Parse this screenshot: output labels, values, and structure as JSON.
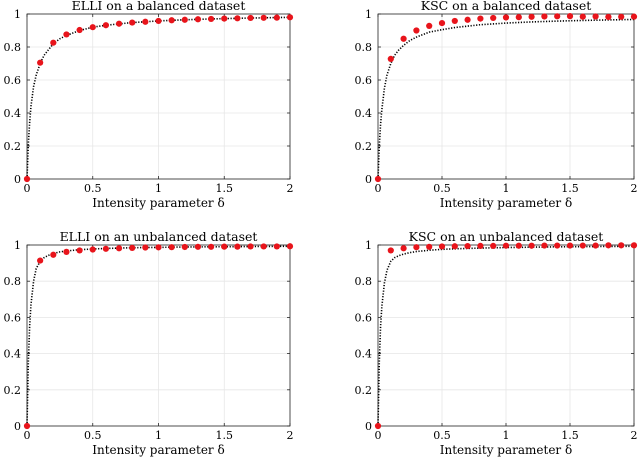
{
  "chart_data": [
    {
      "type": "scatter",
      "title": "ELLI on a balanced dataset",
      "xlabel": "Intensity parameter δ",
      "ylabel": "",
      "xlim": [
        0,
        2
      ],
      "ylim": [
        0,
        1
      ],
      "xticks": [
        "0",
        "0.5",
        "1",
        "1.5",
        "2"
      ],
      "yticks": [
        "0",
        "0.2",
        "0.4",
        "0.6",
        "0.8",
        "1"
      ],
      "grid": true,
      "series": [
        {
          "kind": "points",
          "color": "#e8141b",
          "x": [
            0,
            0.1,
            0.2,
            0.3,
            0.4,
            0.5,
            0.6,
            0.7,
            0.8,
            0.9,
            1.0,
            1.1,
            1.2,
            1.3,
            1.4,
            1.5,
            1.6,
            1.7,
            1.8,
            1.9,
            2.0
          ],
          "y": [
            0,
            0.705,
            0.826,
            0.876,
            0.903,
            0.92,
            0.932,
            0.941,
            0.948,
            0.953,
            0.958,
            0.962,
            0.965,
            0.968,
            0.97,
            0.972,
            0.974,
            0.976,
            0.977,
            0.978,
            0.98
          ]
        },
        {
          "kind": "curve",
          "style": "dotted",
          "color": "#000000",
          "x": [
            0,
            0.01,
            0.02,
            0.03,
            0.05,
            0.07,
            0.1,
            0.13,
            0.16,
            0.2,
            0.25,
            0.3,
            0.4,
            0.5,
            0.6,
            0.8,
            1.0,
            1.2,
            1.4,
            1.6,
            1.8,
            2.0
          ],
          "y": [
            0,
            0.21,
            0.34,
            0.44,
            0.56,
            0.63,
            0.7,
            0.75,
            0.78,
            0.82,
            0.85,
            0.87,
            0.9,
            0.92,
            0.932,
            0.948,
            0.958,
            0.965,
            0.97,
            0.974,
            0.977,
            0.98
          ]
        }
      ]
    },
    {
      "type": "scatter",
      "title": "KSC on a balanced dataset",
      "xlabel": "Intensity parameter δ",
      "ylabel": "",
      "xlim": [
        0,
        2
      ],
      "ylim": [
        0,
        1
      ],
      "xticks": [
        "0",
        "0.5",
        "1",
        "1.5",
        "2"
      ],
      "yticks": [
        "0",
        "0.2",
        "0.4",
        "0.6",
        "0.8",
        "1"
      ],
      "grid": true,
      "series": [
        {
          "kind": "points",
          "color": "#e8141b",
          "x": [
            0,
            0.1,
            0.2,
            0.3,
            0.4,
            0.5,
            0.6,
            0.7,
            0.8,
            0.9,
            1.0,
            1.1,
            1.2,
            1.3,
            1.4,
            1.5,
            1.6,
            1.7,
            1.8,
            1.9,
            2.0
          ],
          "y": [
            0,
            0.728,
            0.85,
            0.9,
            0.928,
            0.945,
            0.958,
            0.965,
            0.972,
            0.976,
            0.979,
            0.981,
            0.983,
            0.985,
            0.986,
            0.987,
            0.984,
            0.985,
            0.982,
            0.983,
            0.984
          ]
        },
        {
          "kind": "curve",
          "style": "dotted",
          "color": "#000000",
          "x": [
            0,
            0.01,
            0.02,
            0.03,
            0.05,
            0.07,
            0.1,
            0.13,
            0.16,
            0.2,
            0.25,
            0.3,
            0.4,
            0.5,
            0.6,
            0.8,
            1.0,
            1.2,
            1.4,
            1.6,
            1.8,
            2.0
          ],
          "y": [
            0,
            0.2,
            0.33,
            0.42,
            0.55,
            0.63,
            0.7,
            0.75,
            0.78,
            0.81,
            0.84,
            0.86,
            0.89,
            0.905,
            0.918,
            0.935,
            0.945,
            0.952,
            0.957,
            0.961,
            0.964,
            0.967
          ]
        }
      ]
    },
    {
      "type": "scatter",
      "title": "ELLI on an unbalanced dataset",
      "xlabel": "Intensity parameter δ",
      "ylabel": "",
      "xlim": [
        0,
        2
      ],
      "ylim": [
        0,
        1
      ],
      "xticks": [
        "0",
        "0.5",
        "1",
        "1.5",
        "2"
      ],
      "yticks": [
        "0",
        "0.2",
        "0.4",
        "0.6",
        "0.8",
        "1"
      ],
      "grid": true,
      "series": [
        {
          "kind": "points",
          "color": "#e8141b",
          "x": [
            0,
            0.1,
            0.2,
            0.3,
            0.4,
            0.5,
            0.6,
            0.7,
            0.8,
            0.9,
            1.0,
            1.1,
            1.2,
            1.3,
            1.4,
            1.5,
            1.6,
            1.7,
            1.8,
            1.9,
            2.0
          ],
          "y": [
            0,
            0.914,
            0.946,
            0.962,
            0.97,
            0.975,
            0.979,
            0.982,
            0.984,
            0.986,
            0.987,
            0.988,
            0.989,
            0.99,
            0.99,
            0.991,
            0.991,
            0.992,
            0.992,
            0.992,
            0.993
          ]
        },
        {
          "kind": "curve",
          "style": "dotted",
          "color": "#000000",
          "x": [
            0,
            0.01,
            0.02,
            0.03,
            0.05,
            0.07,
            0.1,
            0.13,
            0.16,
            0.2,
            0.25,
            0.3,
            0.4,
            0.5,
            0.6,
            0.8,
            1.0,
            1.2,
            1.4,
            1.6,
            1.8,
            2.0
          ],
          "y": [
            0,
            0.35,
            0.55,
            0.67,
            0.8,
            0.87,
            0.91,
            0.93,
            0.942,
            0.953,
            0.962,
            0.967,
            0.974,
            0.978,
            0.981,
            0.985,
            0.987,
            0.989,
            0.99,
            0.991,
            0.992,
            0.993
          ]
        }
      ]
    },
    {
      "type": "scatter",
      "title": "KSC on an unbalanced dataset",
      "xlabel": "Intensity parameter δ",
      "ylabel": "",
      "xlim": [
        0,
        2
      ],
      "ylim": [
        0,
        1
      ],
      "xticks": [
        "0",
        "0.5",
        "1",
        "1.5",
        "2"
      ],
      "yticks": [
        "0",
        "0.2",
        "0.4",
        "0.6",
        "0.8",
        "1"
      ],
      "grid": true,
      "series": [
        {
          "kind": "points",
          "color": "#e8141b",
          "x": [
            0,
            0.1,
            0.2,
            0.3,
            0.4,
            0.5,
            0.6,
            0.7,
            0.8,
            0.9,
            1.0,
            1.1,
            1.2,
            1.3,
            1.4,
            1.5,
            1.6,
            1.7,
            1.8,
            1.9,
            2.0
          ],
          "y": [
            0,
            0.97,
            0.982,
            0.988,
            0.99,
            0.992,
            0.993,
            0.994,
            0.995,
            0.995,
            0.996,
            0.996,
            0.996,
            0.997,
            0.997,
            0.997,
            0.997,
            0.997,
            0.998,
            0.998,
            0.998
          ]
        },
        {
          "kind": "curve",
          "style": "dotted",
          "color": "#000000",
          "x": [
            0,
            0.01,
            0.02,
            0.03,
            0.05,
            0.07,
            0.1,
            0.13,
            0.16,
            0.2,
            0.25,
            0.3,
            0.4,
            0.5,
            0.6,
            0.8,
            1.0,
            1.2,
            1.4,
            1.6,
            1.8,
            2.0
          ],
          "y": [
            0,
            0.35,
            0.55,
            0.66,
            0.79,
            0.86,
            0.91,
            0.93,
            0.94,
            0.95,
            0.958,
            0.964,
            0.971,
            0.976,
            0.979,
            0.983,
            0.986,
            0.988,
            0.99,
            0.991,
            0.992,
            0.993
          ]
        }
      ]
    }
  ]
}
